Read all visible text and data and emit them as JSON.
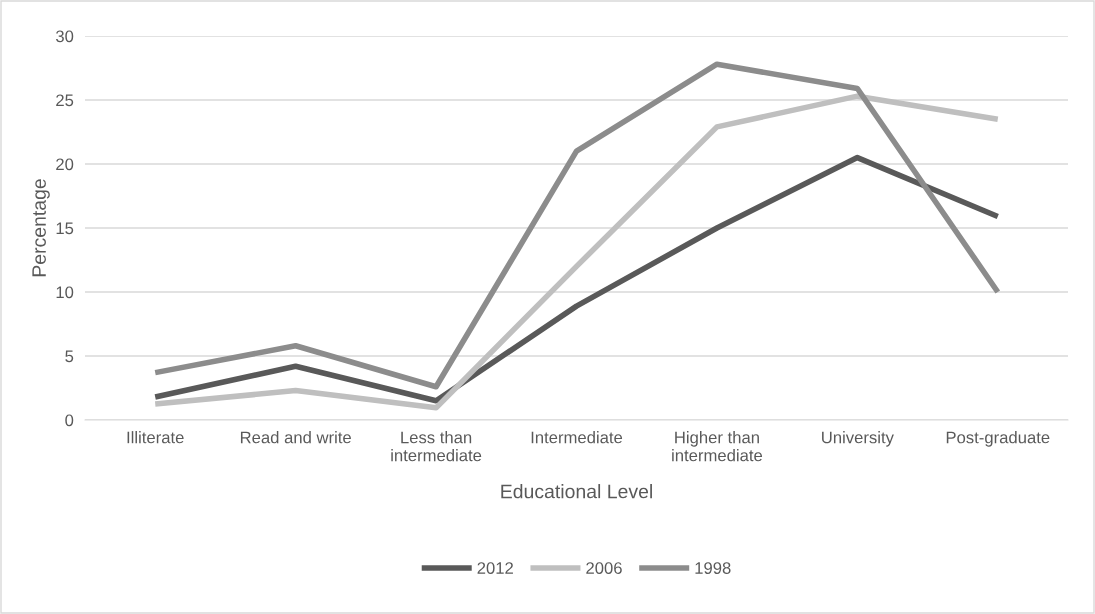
{
  "chart_data": {
    "type": "line",
    "xlabel": "Educational Level",
    "ylabel": "Percentage",
    "categories": [
      "Illiterate",
      "Read and write",
      "Less than\nintermediate",
      "Intermediate",
      "Higher than\nintermediate",
      "University",
      "Post-graduate"
    ],
    "series": [
      {
        "name": "2012",
        "color": "#595959",
        "values": [
          1.8,
          4.2,
          1.5,
          8.9,
          15,
          20.5,
          15.9
        ]
      },
      {
        "name": "2006",
        "color": "#bfbfbf",
        "values": [
          1.25,
          2.3,
          0.95,
          12,
          22.9,
          25.3,
          23.5
        ]
      },
      {
        "name": "1998",
        "color": "#8c8c8c",
        "values": [
          3.7,
          5.8,
          2.6,
          21,
          27.8,
          25.9,
          10
        ]
      }
    ],
    "ylim": [
      0,
      30
    ],
    "yticks": [
      0,
      5,
      10,
      15,
      20,
      25,
      30
    ],
    "grid": "y",
    "legend": "bottom",
    "marker": "none",
    "line_style": "solid"
  }
}
